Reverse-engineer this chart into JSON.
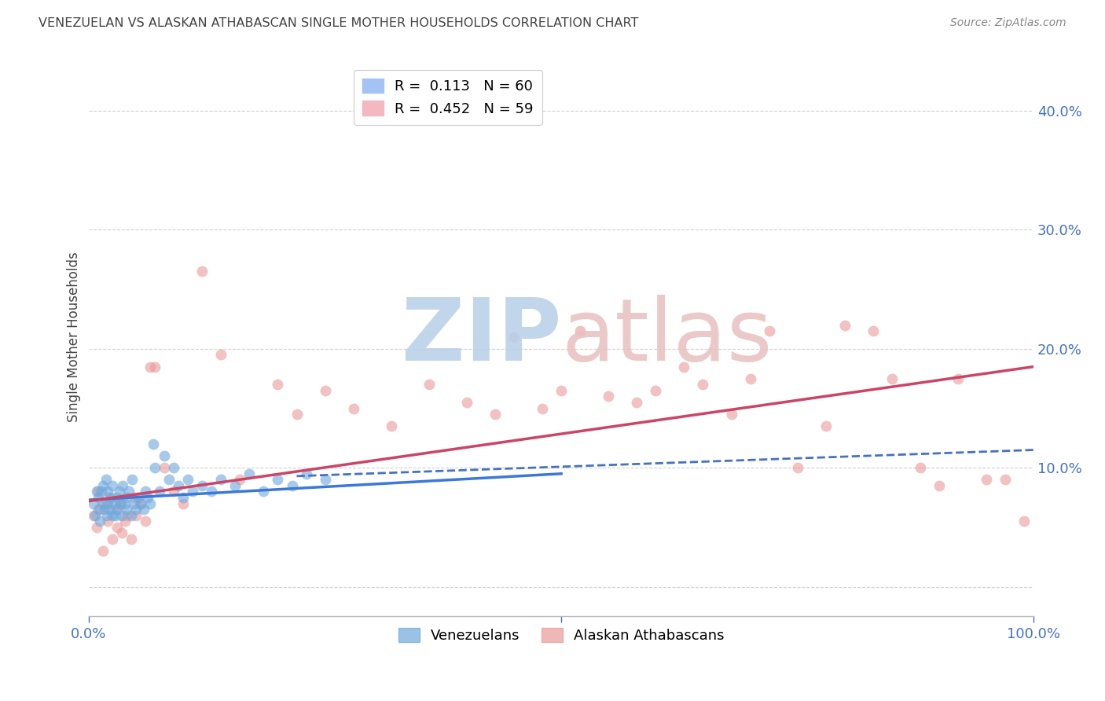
{
  "title": "VENEZUELAN VS ALASKAN ATHABASCAN SINGLE MOTHER HOUSEHOLDS CORRELATION CHART",
  "source": "Source: ZipAtlas.com",
  "ylabel": "Single Mother Households",
  "ytick_labels": [
    "",
    "10.0%",
    "20.0%",
    "30.0%",
    "40.0%"
  ],
  "ytick_values": [
    0,
    0.1,
    0.2,
    0.3,
    0.4
  ],
  "xlim": [
    0.0,
    1.0
  ],
  "ylim": [
    -0.025,
    0.445
  ],
  "legend_entries": [
    {
      "label": "R =  0.113   N = 60",
      "color": "#a4c2f4"
    },
    {
      "label": "R =  0.452   N = 59",
      "color": "#f4b8c1"
    }
  ],
  "background_color": "#ffffff",
  "grid_color": "#cccccc",
  "venezuelan_scatter_x": [
    0.005,
    0.007,
    0.008,
    0.01,
    0.01,
    0.012,
    0.013,
    0.015,
    0.015,
    0.017,
    0.018,
    0.019,
    0.02,
    0.02,
    0.022,
    0.023,
    0.025,
    0.025,
    0.027,
    0.028,
    0.03,
    0.03,
    0.032,
    0.033,
    0.035,
    0.036,
    0.038,
    0.04,
    0.04,
    0.042,
    0.045,
    0.046,
    0.048,
    0.05,
    0.052,
    0.055,
    0.058,
    0.06,
    0.062,
    0.065,
    0.068,
    0.07,
    0.075,
    0.08,
    0.085,
    0.09,
    0.095,
    0.1,
    0.105,
    0.11,
    0.12,
    0.13,
    0.14,
    0.155,
    0.17,
    0.185,
    0.2,
    0.215,
    0.23,
    0.25
  ],
  "venezuelan_scatter_y": [
    0.07,
    0.06,
    0.08,
    0.065,
    0.075,
    0.055,
    0.08,
    0.07,
    0.085,
    0.065,
    0.09,
    0.06,
    0.07,
    0.08,
    0.065,
    0.075,
    0.06,
    0.085,
    0.07,
    0.06,
    0.075,
    0.065,
    0.08,
    0.07,
    0.06,
    0.085,
    0.07,
    0.065,
    0.075,
    0.08,
    0.06,
    0.09,
    0.07,
    0.065,
    0.075,
    0.07,
    0.065,
    0.08,
    0.075,
    0.07,
    0.12,
    0.1,
    0.08,
    0.11,
    0.09,
    0.1,
    0.085,
    0.075,
    0.09,
    0.08,
    0.085,
    0.08,
    0.09,
    0.085,
    0.095,
    0.08,
    0.09,
    0.085,
    0.095,
    0.09
  ],
  "alaskan_scatter_x": [
    0.005,
    0.008,
    0.01,
    0.012,
    0.015,
    0.018,
    0.02,
    0.022,
    0.025,
    0.028,
    0.03,
    0.033,
    0.035,
    0.038,
    0.04,
    0.045,
    0.048,
    0.05,
    0.055,
    0.06,
    0.065,
    0.07,
    0.08,
    0.09,
    0.1,
    0.12,
    0.14,
    0.16,
    0.2,
    0.22,
    0.25,
    0.28,
    0.32,
    0.36,
    0.4,
    0.43,
    0.45,
    0.48,
    0.5,
    0.52,
    0.55,
    0.58,
    0.6,
    0.63,
    0.65,
    0.68,
    0.7,
    0.72,
    0.75,
    0.78,
    0.8,
    0.83,
    0.85,
    0.88,
    0.9,
    0.92,
    0.95,
    0.97,
    0.99
  ],
  "alaskan_scatter_y": [
    0.06,
    0.05,
    0.08,
    0.065,
    0.03,
    0.07,
    0.055,
    0.075,
    0.04,
    0.065,
    0.05,
    0.07,
    0.045,
    0.055,
    0.06,
    0.04,
    0.075,
    0.06,
    0.07,
    0.055,
    0.185,
    0.185,
    0.1,
    0.08,
    0.07,
    0.265,
    0.195,
    0.09,
    0.17,
    0.145,
    0.165,
    0.15,
    0.135,
    0.17,
    0.155,
    0.145,
    0.21,
    0.15,
    0.165,
    0.215,
    0.16,
    0.155,
    0.165,
    0.185,
    0.17,
    0.145,
    0.175,
    0.215,
    0.1,
    0.135,
    0.22,
    0.215,
    0.175,
    0.1,
    0.085,
    0.175,
    0.09,
    0.09,
    0.055
  ],
  "venezuelan_line_x": [
    0.0,
    0.5
  ],
  "venezuelan_line_y": [
    0.073,
    0.095
  ],
  "alaskan_line_x": [
    0.0,
    1.0
  ],
  "alaskan_line_y": [
    0.072,
    0.185
  ],
  "alaskan_dashed_line_x": [
    0.22,
    1.0
  ],
  "alaskan_dashed_line_y": [
    0.093,
    0.115
  ],
  "scatter_alpha": 0.6,
  "scatter_size": 100,
  "venezuelan_color": "#6fa8dc",
  "alaskan_color": "#ea9999",
  "venezuelan_line_color": "#3c78d8",
  "alaskan_line_color": "#cc4466",
  "alaskan_dash_color": "#4472c4",
  "title_color": "#434343",
  "tick_label_color": "#4472c4",
  "watermark_color_zip": "#b8cfe8",
  "watermark_color_atlas": "#e8c0c0"
}
